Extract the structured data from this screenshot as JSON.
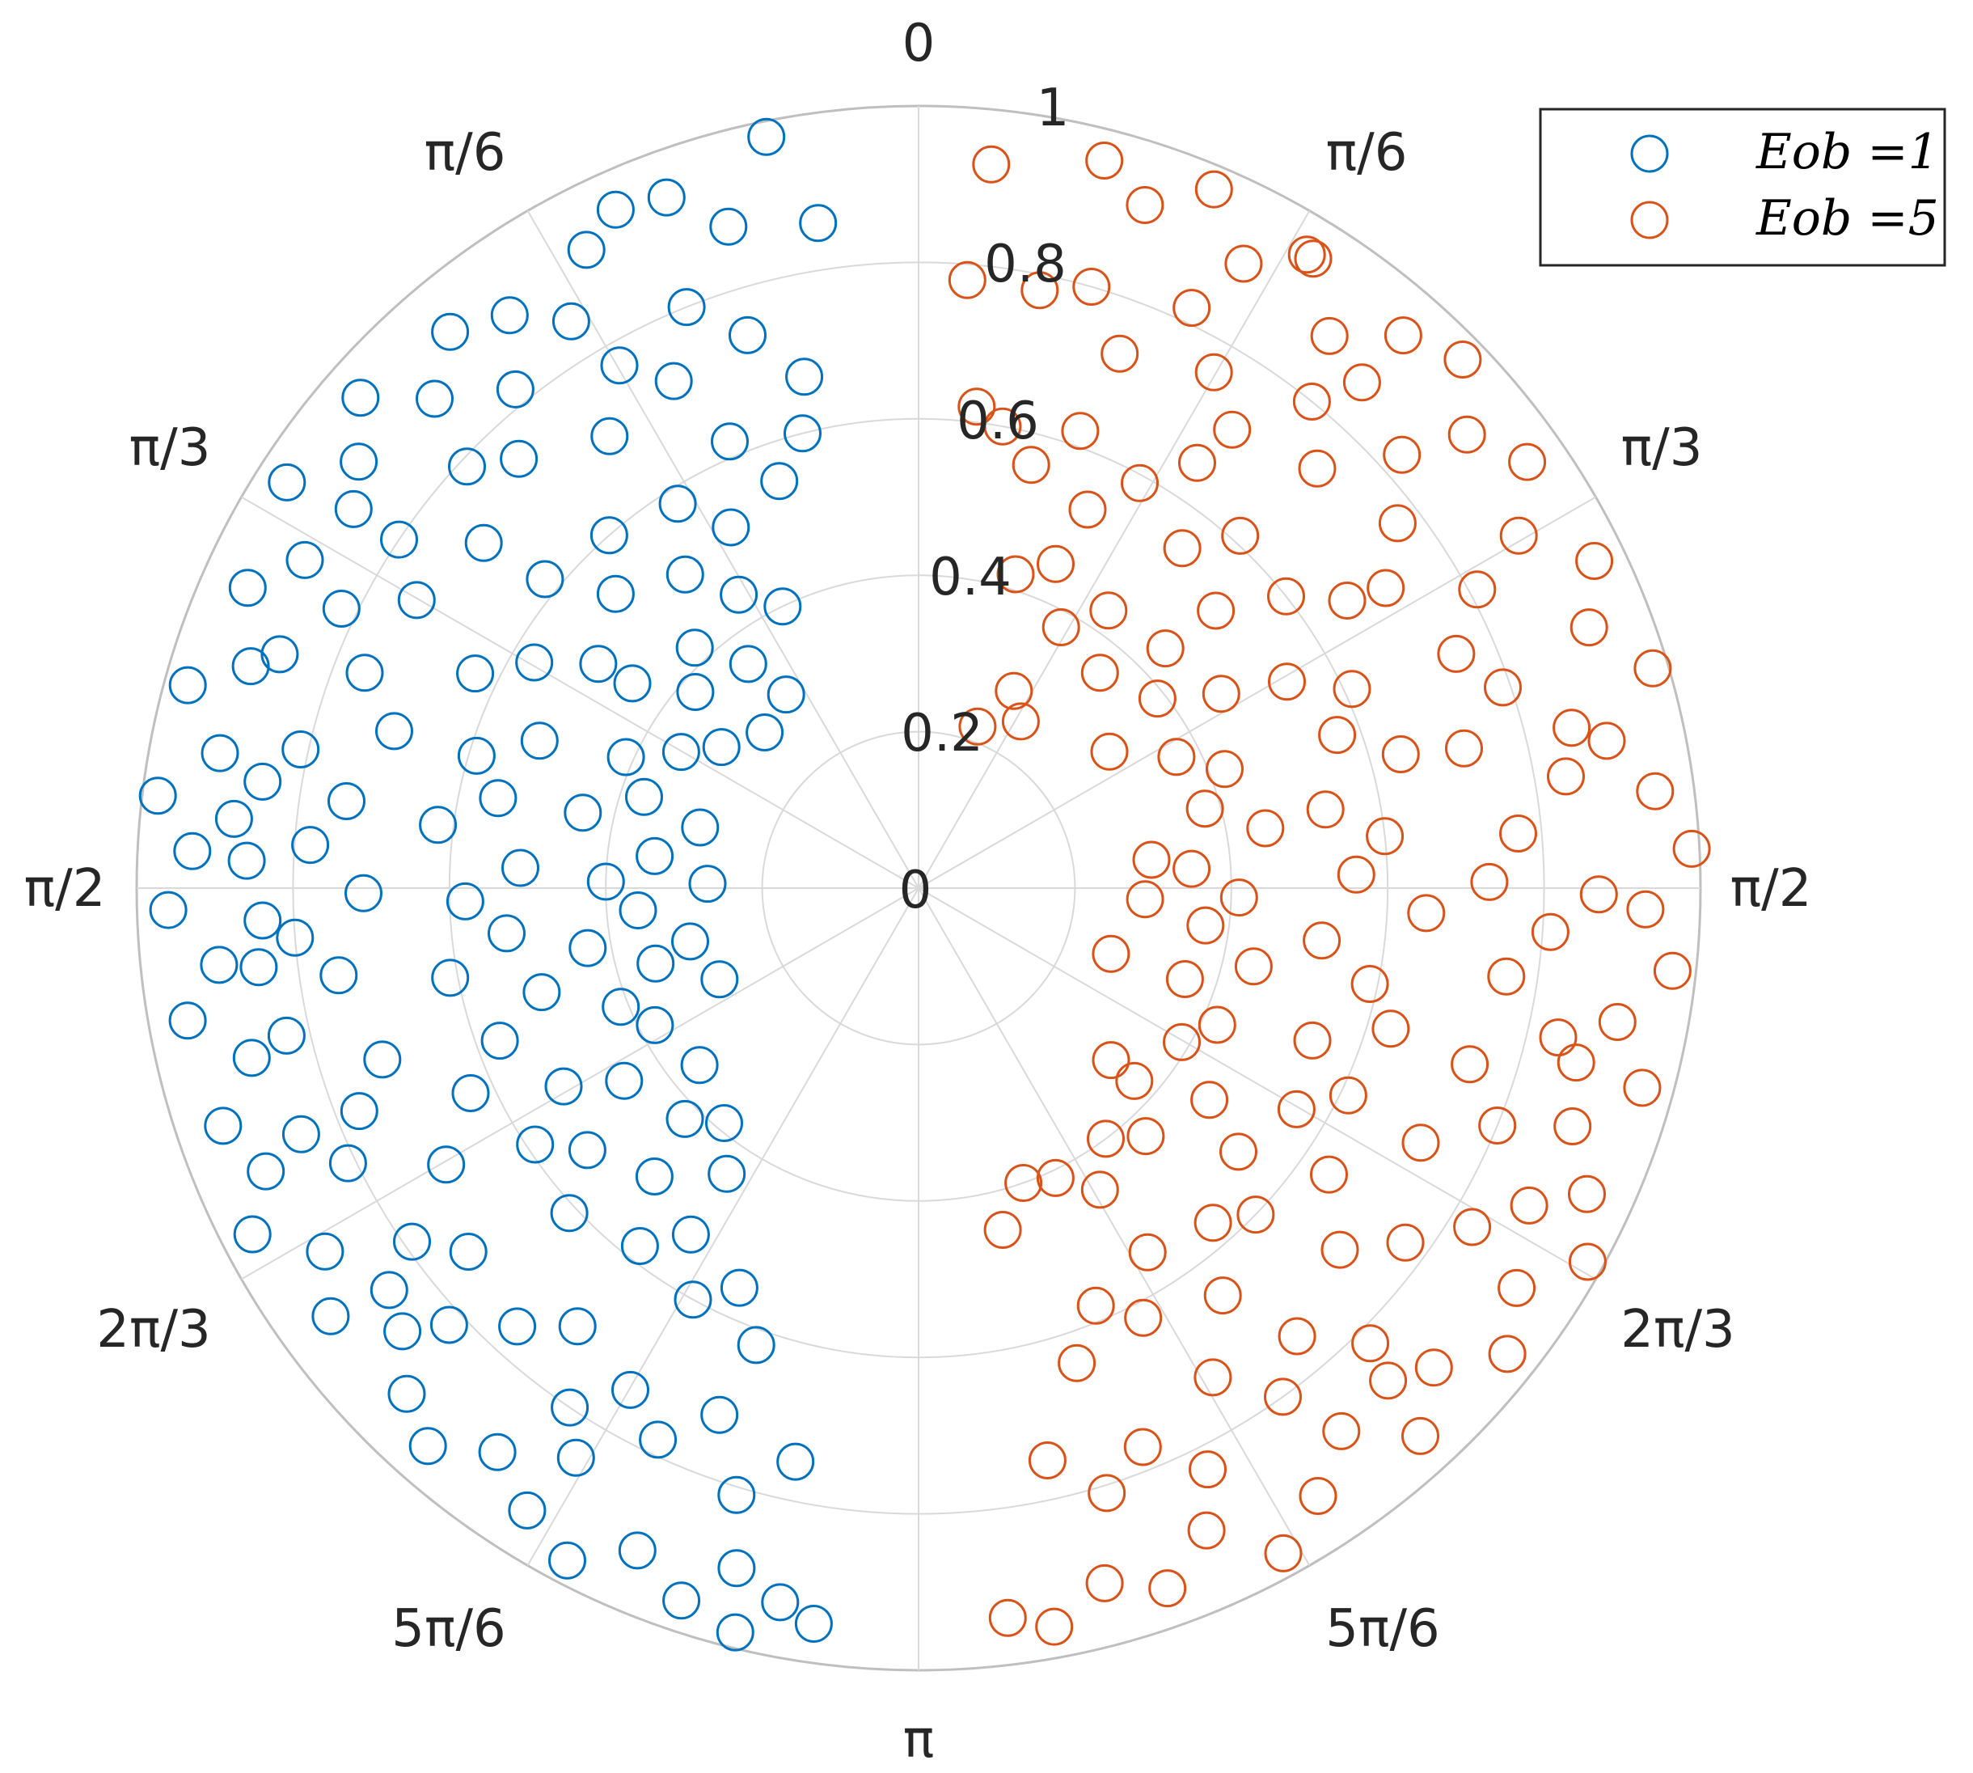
{
  "chart_data": {
    "type": "scatter",
    "projection": "polar",
    "theta_zero": "top",
    "theta_direction": "mirrored-halves",
    "theta_tick_labels_right": [
      "0",
      "π/6",
      "π/3",
      "π/2",
      "2π/3",
      "5π/6",
      "π"
    ],
    "theta_tick_labels_left": [
      "π/6",
      "π/3",
      "π/2",
      "2π/3",
      "5π/6"
    ],
    "theta_ticks": [
      0,
      0.5236,
      1.0472,
      1.5708,
      2.0944,
      2.618,
      3.1416
    ],
    "r_ticks": [
      0,
      0.2,
      0.4,
      0.6,
      0.8,
      1
    ],
    "r_tick_labels": [
      "0",
      "0.2",
      "0.4",
      "0.6",
      "0.8",
      "1"
    ],
    "rlim": [
      0,
      1
    ],
    "grid": true,
    "legend": {
      "placement": "top-right",
      "entries": [
        "Eob =1",
        "Eob =5"
      ]
    },
    "series": [
      {
        "name": "Eob =1",
        "side": "left",
        "color": "#0072BD",
        "marker": "open-circle",
        "points": [
          [
            0.2,
            0.98
          ],
          [
            0.35,
            0.94
          ],
          [
            0.42,
            0.95
          ],
          [
            0.28,
            0.88
          ],
          [
            0.48,
            0.92
          ],
          [
            0.55,
            0.85
          ],
          [
            0.62,
            0.9
          ],
          [
            0.7,
            0.93
          ],
          [
            0.78,
            0.88
          ],
          [
            0.85,
            0.95
          ],
          [
            0.92,
            0.9
          ],
          [
            1.0,
            0.96
          ],
          [
            1.08,
            0.89
          ],
          [
            1.15,
            0.94
          ],
          [
            1.22,
            0.87
          ],
          [
            1.3,
            0.97
          ],
          [
            1.38,
            0.91
          ],
          [
            1.45,
            0.98
          ],
          [
            1.52,
            0.93
          ],
          [
            1.6,
            0.96
          ],
          [
            1.68,
            0.9
          ],
          [
            1.75,
            0.95
          ],
          [
            1.82,
            0.88
          ],
          [
            1.9,
            0.94
          ],
          [
            1.98,
            0.91
          ],
          [
            2.05,
            0.96
          ],
          [
            2.12,
            0.89
          ],
          [
            2.2,
            0.93
          ],
          [
            2.28,
            0.87
          ],
          [
            2.35,
            0.92
          ],
          [
            2.42,
            0.95
          ],
          [
            2.5,
            0.9
          ],
          [
            2.58,
            0.94
          ],
          [
            2.66,
            0.97
          ],
          [
            2.74,
            0.92
          ],
          [
            2.82,
            0.96
          ],
          [
            2.9,
            0.98
          ],
          [
            2.95,
            0.93
          ],
          [
            3.0,
            0.95
          ],
          [
            2.88,
            0.9
          ],
          [
            0.3,
            0.74
          ],
          [
            0.38,
            0.8
          ],
          [
            0.45,
            0.72
          ],
          [
            0.52,
            0.77
          ],
          [
            0.6,
            0.7
          ],
          [
            0.68,
            0.82
          ],
          [
            0.75,
            0.75
          ],
          [
            0.82,
            0.79
          ],
          [
            0.9,
            0.71
          ],
          [
            0.98,
            0.8
          ],
          [
            1.05,
            0.74
          ],
          [
            1.12,
            0.82
          ],
          [
            1.2,
            0.76
          ],
          [
            1.28,
            0.7
          ],
          [
            1.35,
            0.81
          ],
          [
            1.42,
            0.74
          ],
          [
            1.5,
            0.78
          ],
          [
            1.58,
            0.71
          ],
          [
            1.65,
            0.8
          ],
          [
            1.72,
            0.75
          ],
          [
            1.8,
            0.83
          ],
          [
            1.88,
            0.72
          ],
          [
            1.95,
            0.77
          ],
          [
            2.02,
            0.81
          ],
          [
            2.1,
            0.7
          ],
          [
            2.18,
            0.79
          ],
          [
            2.25,
            0.74
          ],
          [
            2.32,
            0.82
          ],
          [
            2.4,
            0.76
          ],
          [
            2.48,
            0.71
          ],
          [
            2.55,
            0.8
          ],
          [
            2.62,
            0.74
          ],
          [
            2.7,
            0.78
          ],
          [
            2.78,
            0.72
          ],
          [
            2.85,
            0.81
          ],
          [
            2.93,
            0.75
          ],
          [
            0.25,
            0.6
          ],
          [
            0.33,
            0.55
          ],
          [
            0.4,
            0.62
          ],
          [
            0.48,
            0.52
          ],
          [
            0.56,
            0.58
          ],
          [
            0.64,
            0.5
          ],
          [
            0.72,
            0.6
          ],
          [
            0.8,
            0.54
          ],
          [
            0.88,
            0.62
          ],
          [
            0.96,
            0.5
          ],
          [
            1.04,
            0.57
          ],
          [
            1.12,
            0.63
          ],
          [
            1.2,
            0.52
          ],
          [
            1.28,
            0.59
          ],
          [
            1.36,
            0.55
          ],
          [
            1.44,
            0.62
          ],
          [
            1.52,
            0.51
          ],
          [
            1.6,
            0.58
          ],
          [
            1.68,
            0.53
          ],
          [
            1.76,
            0.61
          ],
          [
            1.84,
            0.5
          ],
          [
            1.92,
            0.57
          ],
          [
            2.0,
            0.63
          ],
          [
            2.08,
            0.52
          ],
          [
            2.16,
            0.59
          ],
          [
            2.24,
            0.54
          ],
          [
            2.32,
            0.61
          ],
          [
            2.4,
            0.5
          ],
          [
            2.48,
            0.58
          ],
          [
            2.56,
            0.53
          ],
          [
            2.64,
            0.6
          ],
          [
            2.72,
            0.56
          ],
          [
            2.8,
            0.62
          ],
          [
            0.45,
            0.4
          ],
          [
            0.55,
            0.44
          ],
          [
            0.65,
            0.36
          ],
          [
            0.75,
            0.42
          ],
          [
            0.85,
            0.38
          ],
          [
            0.95,
            0.45
          ],
          [
            1.05,
            0.35
          ],
          [
            1.15,
            0.41
          ],
          [
            1.25,
            0.37
          ],
          [
            1.35,
            0.44
          ],
          [
            1.45,
            0.34
          ],
          [
            1.55,
            0.4
          ],
          [
            1.65,
            0.36
          ],
          [
            1.75,
            0.43
          ],
          [
            1.85,
            0.35
          ],
          [
            1.95,
            0.41
          ],
          [
            2.05,
            0.38
          ],
          [
            2.15,
            0.45
          ],
          [
            2.25,
            0.36
          ],
          [
            2.35,
            0.42
          ],
          [
            2.45,
            0.39
          ],
          [
            2.55,
            0.44
          ],
          [
            0.6,
            0.3
          ],
          [
            0.78,
            0.28
          ],
          [
            0.95,
            0.31
          ],
          [
            1.3,
            0.29
          ],
          [
            1.55,
            0.27
          ],
          [
            1.8,
            0.3
          ],
          [
            2.0,
            0.28
          ],
          [
            0.15,
            0.86
          ],
          [
            0.22,
            0.67
          ],
          [
            1.47,
            0.88
          ],
          [
            1.53,
            0.86
          ],
          [
            1.62,
            0.84
          ],
          [
            1.41,
            0.85
          ],
          [
            1.69,
            0.85
          ],
          [
            1.95,
            0.85
          ],
          [
            2.22,
            0.85
          ],
          [
            0.98,
            0.87
          ],
          [
            1.25,
            0.9
          ],
          [
            2.6,
            0.85
          ]
        ]
      },
      {
        "name": "Eob =5",
        "side": "right",
        "color": "#D95319",
        "marker": "open-circle",
        "points": [
          [
            0.1,
            0.93
          ],
          [
            0.25,
            0.96
          ],
          [
            0.32,
            0.92
          ],
          [
            0.4,
            0.97
          ],
          [
            0.48,
            0.9
          ],
          [
            0.56,
            0.95
          ],
          [
            0.64,
            0.88
          ],
          [
            0.72,
            0.94
          ],
          [
            0.8,
            0.97
          ],
          [
            0.88,
            0.91
          ],
          [
            0.96,
            0.95
          ],
          [
            1.04,
            0.89
          ],
          [
            1.12,
            0.96
          ],
          [
            1.2,
            0.92
          ],
          [
            1.28,
            0.98
          ],
          [
            1.36,
            0.9
          ],
          [
            1.44,
            0.95
          ],
          [
            1.52,
            0.99
          ],
          [
            1.6,
            0.93
          ],
          [
            1.68,
            0.97
          ],
          [
            1.76,
            0.91
          ],
          [
            1.84,
            0.96
          ],
          [
            1.92,
            0.89
          ],
          [
            2.0,
            0.94
          ],
          [
            2.08,
            0.98
          ],
          [
            2.16,
            0.92
          ],
          [
            2.24,
            0.96
          ],
          [
            2.32,
            0.9
          ],
          [
            2.4,
            0.95
          ],
          [
            2.48,
            0.88
          ],
          [
            2.56,
            0.93
          ],
          [
            2.64,
            0.97
          ],
          [
            2.72,
            0.9
          ],
          [
            2.8,
            0.95
          ],
          [
            2.88,
            0.92
          ],
          [
            2.96,
            0.96
          ],
          [
            3.02,
            0.94
          ],
          [
            0.08,
            0.78
          ],
          [
            0.12,
            0.62
          ],
          [
            0.2,
            0.78
          ],
          [
            0.28,
            0.8
          ],
          [
            0.36,
            0.73
          ],
          [
            0.44,
            0.82
          ],
          [
            0.52,
            0.76
          ],
          [
            0.6,
            0.71
          ],
          [
            0.68,
            0.8
          ],
          [
            0.76,
            0.74
          ],
          [
            0.84,
            0.83
          ],
          [
            0.92,
            0.77
          ],
          [
            1.0,
            0.71
          ],
          [
            1.08,
            0.81
          ],
          [
            1.16,
            0.75
          ],
          [
            1.24,
            0.79
          ],
          [
            1.32,
            0.72
          ],
          [
            1.4,
            0.84
          ],
          [
            1.48,
            0.77
          ],
          [
            1.56,
            0.73
          ],
          [
            1.64,
            0.81
          ],
          [
            1.72,
            0.76
          ],
          [
            1.8,
            0.84
          ],
          [
            1.88,
            0.74
          ],
          [
            1.96,
            0.8
          ],
          [
            2.04,
            0.72
          ],
          [
            2.12,
            0.83
          ],
          [
            2.2,
            0.77
          ],
          [
            2.28,
            0.71
          ],
          [
            2.36,
            0.82
          ],
          [
            2.44,
            0.75
          ],
          [
            2.52,
            0.8
          ],
          [
            2.6,
            0.73
          ],
          [
            2.68,
            0.83
          ],
          [
            2.76,
            0.77
          ],
          [
            2.84,
            0.81
          ],
          [
            2.92,
            0.75
          ],
          [
            0.18,
            0.6
          ],
          [
            0.26,
            0.56
          ],
          [
            0.34,
            0.62
          ],
          [
            0.42,
            0.53
          ],
          [
            0.5,
            0.59
          ],
          [
            0.58,
            0.65
          ],
          [
            0.66,
            0.55
          ],
          [
            0.74,
            0.61
          ],
          [
            0.82,
            0.52
          ],
          [
            0.9,
            0.6
          ],
          [
            0.98,
            0.66
          ],
          [
            1.06,
            0.54
          ],
          [
            1.14,
            0.61
          ],
          [
            1.22,
            0.57
          ],
          [
            1.3,
            0.64
          ],
          [
            1.38,
            0.53
          ],
          [
            1.46,
            0.6
          ],
          [
            1.54,
            0.56
          ],
          [
            1.62,
            0.65
          ],
          [
            1.7,
            0.52
          ],
          [
            1.78,
            0.59
          ],
          [
            1.86,
            0.63
          ],
          [
            1.94,
            0.54
          ],
          [
            2.02,
            0.61
          ],
          [
            2.1,
            0.56
          ],
          [
            2.18,
            0.64
          ],
          [
            2.26,
            0.53
          ],
          [
            2.34,
            0.6
          ],
          [
            2.42,
            0.57
          ],
          [
            2.5,
            0.65
          ],
          [
            2.58,
            0.55
          ],
          [
            2.66,
            0.62
          ],
          [
            2.74,
            0.58
          ],
          [
            2.82,
            0.64
          ],
          [
            0.3,
            0.42
          ],
          [
            0.4,
            0.45
          ],
          [
            0.5,
            0.38
          ],
          [
            0.6,
            0.43
          ],
          [
            0.7,
            0.36
          ],
          [
            0.8,
            0.44
          ],
          [
            0.9,
            0.39
          ],
          [
            1.0,
            0.46
          ],
          [
            1.1,
            0.37
          ],
          [
            1.2,
            0.42
          ],
          [
            1.3,
            0.38
          ],
          [
            1.4,
            0.45
          ],
          [
            1.5,
            0.35
          ],
          [
            1.6,
            0.41
          ],
          [
            1.7,
            0.37
          ],
          [
            1.8,
            0.44
          ],
          [
            1.9,
            0.36
          ],
          [
            2.0,
            0.42
          ],
          [
            2.1,
            0.39
          ],
          [
            2.2,
            0.46
          ],
          [
            2.3,
            0.37
          ],
          [
            2.4,
            0.43
          ],
          [
            2.5,
            0.4
          ],
          [
            2.6,
            0.45
          ],
          [
            2.7,
            0.41
          ],
          [
            0.35,
            0.22
          ],
          [
            0.45,
            0.28
          ],
          [
            0.55,
            0.25
          ],
          [
            0.95,
            0.3
          ],
          [
            1.45,
            0.3
          ],
          [
            1.62,
            0.29
          ],
          [
            1.9,
            0.26
          ],
          [
            2.3,
            0.33
          ],
          [
            2.8,
            0.4
          ],
          [
            2.9,
            0.45
          ],
          [
            0.55,
            0.95
          ],
          [
            0.72,
            0.86
          ],
          [
            1.33,
            0.86
          ],
          [
            1.58,
            0.87
          ],
          [
            1.83,
            0.87
          ],
          [
            2.05,
            0.88
          ],
          [
            2.38,
            0.87
          ]
        ]
      }
    ]
  }
}
